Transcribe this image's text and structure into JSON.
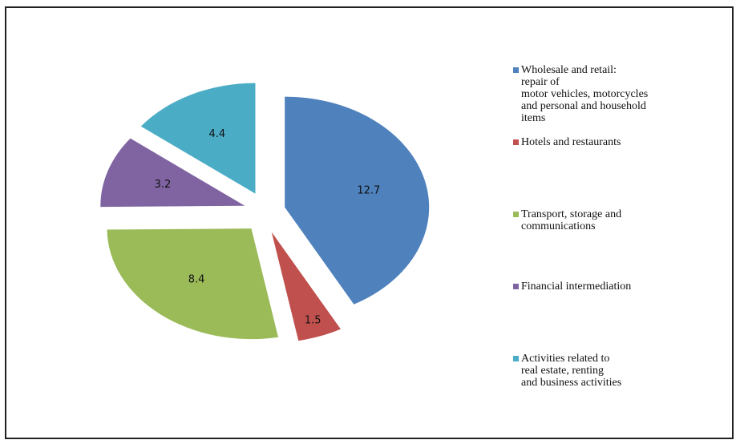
{
  "chart_data": {
    "type": "pie",
    "categories": [
      "Wholesale and retail:\nrepair of\nmotor vehicles, motorcycles\nand personal and household\nitems",
      "Hotels and restaurants",
      "Transport, storage and\ncommunications",
      "Financial intermediation",
      "Activities related to\nreal estate, renting\nand business activities"
    ],
    "values": [
      12.7,
      1.5,
      8.4,
      3.2,
      4.4
    ],
    "colors": [
      "#4f81bd",
      "#c0504d",
      "#9bbb59",
      "#8064a2",
      "#4bacc6"
    ],
    "legend": "right"
  }
}
